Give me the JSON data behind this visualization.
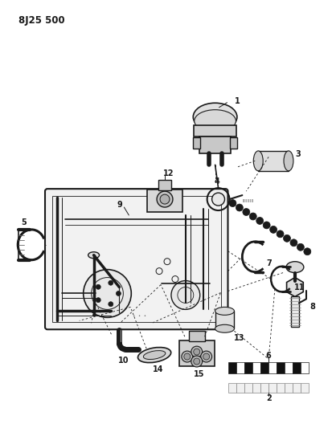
{
  "title": "8J25 500",
  "bg_color": "#ffffff",
  "lc": "#1a1a1a",
  "figsize": [
    4.14,
    5.33
  ],
  "dpi": 100
}
